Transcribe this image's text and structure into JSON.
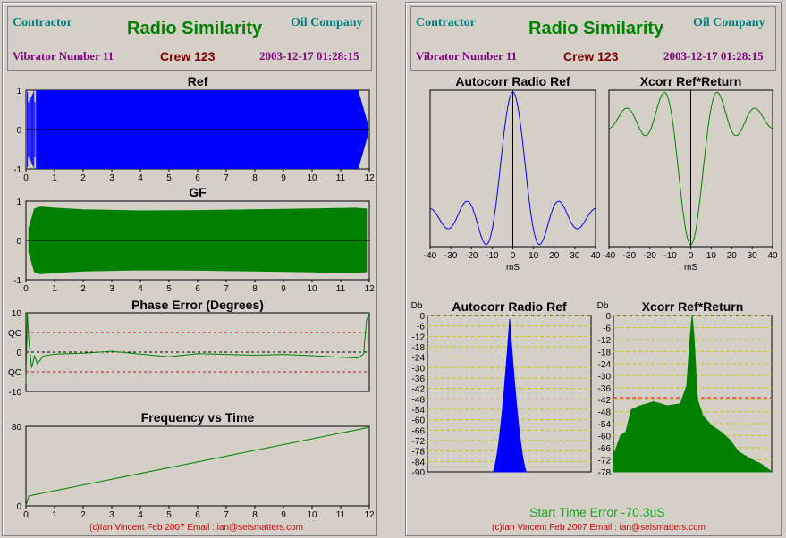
{
  "left": {
    "header": {
      "contractor": "Contractor",
      "title": "Radio Similarity",
      "company": "Oil Company",
      "vibrator": "Vibrator Number 11",
      "crew": "Crew 123",
      "datetime": "2003-12-17 01:28:15"
    },
    "footer": "(c)Ian Vincent Feb 2007 Email : ian@seismatters.com"
  },
  "right": {
    "header": {
      "contractor": "Contractor",
      "title": "Radio Similarity",
      "company": "Oil Company",
      "vibrator": "Vibrator Number 11",
      "crew": "Crew 123",
      "datetime": "2003-12-17 01:28:15"
    },
    "start_time_error": "Start Time Error -70.3uS",
    "footer": "(c)Ian Vincent Feb 2007 Email : ian@seismatters.com"
  },
  "colors": {
    "ref": "#0000ff",
    "gf": "#008000",
    "qc": "#ff0000",
    "grid_db": "#c8c800"
  },
  "chart_data": [
    {
      "id": "ref",
      "type": "line",
      "title": "Ref",
      "xlim": [
        0,
        12
      ],
      "ylim": [
        -1,
        1
      ],
      "xticks": [
        0,
        1,
        2,
        3,
        4,
        5,
        6,
        7,
        8,
        9,
        10,
        11,
        12
      ],
      "yticks": [
        1,
        0,
        -1
      ],
      "fill": "#0000ff"
    },
    {
      "id": "gf",
      "type": "line",
      "title": "GF",
      "xlim": [
        0,
        12
      ],
      "ylim": [
        -1,
        1
      ],
      "xticks": [
        0,
        1,
        2,
        3,
        4,
        5,
        6,
        7,
        8,
        9,
        10,
        11,
        12
      ],
      "yticks": [
        1,
        0,
        -1
      ],
      "fill": "#008000",
      "envelope": {
        "x": [
          0.1,
          0.3,
          0.5,
          1,
          2,
          4,
          6,
          8,
          10,
          11.5,
          11.9
        ],
        "y": [
          0.3,
          0.8,
          0.85,
          0.82,
          0.78,
          0.75,
          0.76,
          0.78,
          0.8,
          0.82,
          0.8
        ]
      }
    },
    {
      "id": "phase",
      "type": "line",
      "title": "Phase Error (Degrees)",
      "xlim": [
        0,
        12
      ],
      "ylim": [
        -10,
        10
      ],
      "yticks": [
        "10",
        "QC",
        "0",
        "QC",
        "-10"
      ],
      "qc_levels": [
        5,
        -5
      ],
      "x": [
        0,
        0.05,
        0.1,
        0.2,
        0.3,
        0.4,
        0.6,
        1,
        2,
        3,
        4,
        5,
        6,
        7,
        8,
        9,
        10,
        11,
        11.6,
        11.8,
        11.9,
        12
      ],
      "y": [
        -8,
        10,
        3,
        -4,
        -1,
        -3,
        -1,
        -0.5,
        -0.3,
        0.2,
        -0.5,
        -1.2,
        -0.4,
        -0.6,
        -0.8,
        -0.6,
        -0.9,
        -1.3,
        -1.5,
        -0.5,
        8,
        10
      ]
    },
    {
      "id": "freq",
      "type": "line",
      "title": "Frequency vs Time",
      "xlim": [
        0,
        12
      ],
      "ylim": [
        0,
        80
      ],
      "xticks": [
        0,
        1,
        2,
        3,
        4,
        5,
        6,
        7,
        8,
        9,
        10,
        11,
        12
      ],
      "yticks": [
        80,
        0
      ],
      "x": [
        0,
        0.1,
        0.2,
        12
      ],
      "y": [
        0,
        10,
        10.5,
        79
      ]
    },
    {
      "id": "autocorr",
      "type": "line",
      "title": "Autocorr Radio Ref",
      "xlabel": "mS",
      "xlim": [
        -40,
        40
      ],
      "xticks": [
        -40,
        -30,
        -20,
        -10,
        0,
        10,
        20,
        30,
        40
      ]
    },
    {
      "id": "xcorr",
      "type": "line",
      "title": "Xcorr Ref*Return",
      "xlabel": "mS",
      "xlim": [
        -40,
        40
      ],
      "xticks": [
        -40,
        -30,
        -20,
        -10,
        0,
        10,
        20,
        30,
        40
      ]
    },
    {
      "id": "autocorr_db",
      "type": "area",
      "title": "Autocorr Radio Ref",
      "ylabel": "Db",
      "ylim": [
        -90,
        0
      ],
      "yticks": [
        0,
        -6,
        -12,
        -18,
        -24,
        -30,
        -36,
        -42,
        -48,
        -54,
        -60,
        -66,
        -72,
        -78,
        -84,
        -90
      ]
    },
    {
      "id": "xcorr_db",
      "type": "area",
      "title": "Xcorr Ref*Return",
      "ylabel": "Db",
      "ylim": [
        -78,
        0
      ],
      "yticks": [
        0,
        -6,
        -12,
        -18,
        -24,
        -30,
        -36,
        -42,
        -48,
        -54,
        -60,
        -66,
        -72,
        -78
      ],
      "threshold": -41
    }
  ]
}
